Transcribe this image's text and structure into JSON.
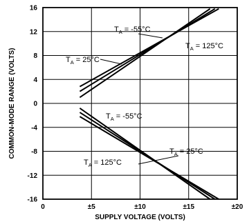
{
  "chart_data": {
    "type": "line",
    "title": "",
    "xlabel": "SUPPLY VOLTAGE (VOLTS)",
    "ylabel": "COMMON-MODE RANGE (VOLTS)",
    "xlim": [
      0,
      20
    ],
    "ylim": [
      -16,
      16
    ],
    "xticks": [
      0,
      5,
      10,
      15,
      20
    ],
    "xtick_labels": [
      "0",
      "±5",
      "±10",
      "±15",
      "±20"
    ],
    "yticks": [
      -16,
      -12,
      -8,
      -4,
      0,
      4,
      8,
      12,
      16
    ],
    "ytick_labels": [
      "-16",
      "-12",
      "-8",
      "-4",
      "0",
      "4",
      "8",
      "12",
      "16"
    ],
    "grid": true,
    "series": [
      {
        "name": "T_A = -55°C",
        "group": "positive",
        "x": [
          3.8,
          17.2
        ],
        "y": [
          1.0,
          15.8
        ]
      },
      {
        "name": "T_A = 25°C",
        "group": "positive",
        "x": [
          3.8,
          17.7
        ],
        "y": [
          2.0,
          15.8
        ]
      },
      {
        "name": "T_A = 125°C",
        "group": "positive",
        "x": [
          3.8,
          18.1
        ],
        "y": [
          2.8,
          15.8
        ]
      },
      {
        "name": "T_A = -55°C",
        "group": "negative",
        "x": [
          3.8,
          17.2
        ],
        "y": [
          -0.8,
          -16.0
        ]
      },
      {
        "name": "T_A = 25°C",
        "group": "negative",
        "x": [
          3.8,
          17.7
        ],
        "y": [
          -1.5,
          -16.0
        ]
      },
      {
        "name": "T_A = 125°C",
        "group": "negative",
        "x": [
          3.8,
          18.1
        ],
        "y": [
          -2.2,
          -16.0
        ]
      }
    ],
    "annotations": [
      {
        "id": "pos-m55",
        "main": "T",
        "sub": "A",
        "rest": " = -55°C"
      },
      {
        "id": "pos-25",
        "main": "T",
        "sub": "A",
        "rest": " = 25°C"
      },
      {
        "id": "pos-125",
        "main": "T",
        "sub": "A",
        "rest": " = 125°C"
      },
      {
        "id": "neg-m55",
        "main": "T",
        "sub": "A",
        "rest": " = -55°C"
      },
      {
        "id": "neg-25",
        "main": "T",
        "sub": "A",
        "rest": " = 25°C"
      },
      {
        "id": "neg-125",
        "main": "T",
        "sub": "A",
        "rest": " = 125°C"
      }
    ]
  }
}
